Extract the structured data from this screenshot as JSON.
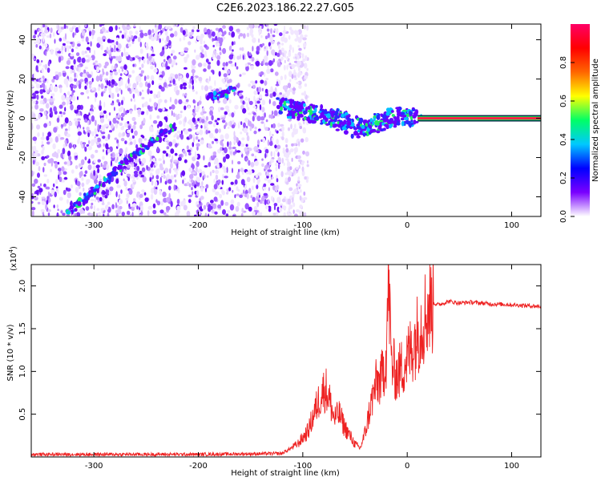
{
  "title": "C2E6.2023.186.22.27.G05",
  "chart_data": [
    {
      "type": "heatmap",
      "name": "spectrogram",
      "xlabel": "Height of straight line (km)",
      "ylabel": "Frequency (Hz)",
      "xlim": [
        -360,
        128
      ],
      "ylim": [
        -50,
        48
      ],
      "xticks": [
        -300,
        -200,
        -100,
        0,
        100
      ],
      "yticks": [
        -40,
        -20,
        0,
        20,
        40
      ],
      "colorbar": {
        "label": "Normalized spectral amplitude",
        "ticks": [
          0.0,
          0.2,
          0.4,
          0.6,
          0.8
        ],
        "range": [
          0,
          1
        ],
        "colormap": [
          "#ffffff",
          "#7a00ff",
          "#0000ff",
          "#00c8ff",
          "#00ff66",
          "#ffff00",
          "#ff6600",
          "#ff0000",
          "#ff0066"
        ]
      },
      "features": {
        "noise_region_x": [
          -360,
          -110
        ],
        "diagonal_track": [
          [
            -325,
            -48
          ],
          [
            -295,
            -35
          ],
          [
            -270,
            -22
          ],
          [
            -245,
            -12
          ],
          [
            -220,
            -3
          ]
        ],
        "short_segment": [
          [
            -190,
            11
          ],
          [
            -175,
            12
          ],
          [
            -165,
            15
          ]
        ],
        "turbulent_region": [
          [
            -120,
            6
          ],
          [
            -100,
            3
          ],
          [
            -85,
            2
          ],
          [
            -70,
            0
          ],
          [
            -60,
            -2
          ],
          [
            -45,
            -5
          ],
          [
            -30,
            -3
          ],
          [
            -15,
            0
          ],
          [
            0,
            1
          ],
          [
            10,
            0
          ]
        ],
        "carrier_line": {
          "x_start": 10,
          "x_end": 128,
          "frequency": 0
        }
      }
    },
    {
      "type": "line",
      "name": "snr",
      "xlabel": "Height of straight line (km)",
      "ylabel": "SNR (10 * v/v)",
      "yscale_label": "(x10",
      "yscale_exp": "4",
      "yscale_close": ")",
      "xlim": [
        -360,
        128
      ],
      "ylim": [
        0,
        22500
      ],
      "xticks": [
        -300,
        -200,
        -100,
        0,
        100
      ],
      "yticks": [
        5000,
        10000,
        15000,
        20000
      ],
      "ytick_labels": [
        "0.5",
        "1.0",
        "1.5",
        "2.0"
      ],
      "color": "#ee2222",
      "series": [
        {
          "x": [
            -360,
            -300,
            -200,
            -120,
            -105,
            -95,
            -88,
            -82,
            -78,
            -74,
            -70,
            -65,
            -60,
            -55,
            -50,
            -45,
            -40,
            -35,
            -30,
            -25,
            -20,
            -18,
            -15,
            -10,
            -5,
            0,
            5,
            10,
            15,
            20,
            25,
            30,
            40,
            50,
            60,
            80,
            100,
            128
          ],
          "y": [
            300,
            300,
            300,
            400,
            1500,
            3000,
            5500,
            7500,
            8000,
            6500,
            4500,
            5000,
            3500,
            2500,
            1500,
            1000,
            3000,
            6000,
            8500,
            9000,
            12000,
            21000,
            11000,
            9500,
            10500,
            11500,
            13000,
            14500,
            16000,
            17500,
            18000,
            17800,
            18200,
            18000,
            18100,
            17900,
            17800,
            17600
          ]
        }
      ]
    }
  ]
}
